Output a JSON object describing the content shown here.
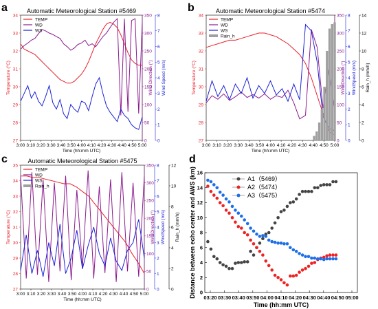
{
  "colors": {
    "temp": "#e8202a",
    "wd": "#8b1a8f",
    "ws": "#1c22d6",
    "rain": "#a0a0a0",
    "a1": "#444444",
    "a2": "#ee2222",
    "a3": "#1d6fe8"
  },
  "chart_data": [
    {
      "panel": "a",
      "type": "line",
      "title": "Automatic Meteorological Station #5469",
      "xlabel": "Time (hh:mm UTC)",
      "x_ticks": [
        "3:00",
        "3:10",
        "3:20",
        "3:30",
        "3:40",
        "3:50",
        "4:00",
        "4:10",
        "4:20",
        "4:30",
        "4:40",
        "4:50",
        "5:00"
      ],
      "left_axis": {
        "label": "Temperature (°C)",
        "ticks": [
          27,
          28,
          29,
          30,
          31,
          32,
          33,
          34
        ],
        "ylim": [
          27,
          34
        ]
      },
      "right_axes": [
        {
          "label": "Wind Direction (°)",
          "ticks": [
            0,
            50,
            100,
            150,
            200,
            250,
            300,
            350
          ],
          "ylim": [
            0,
            350
          ]
        },
        {
          "label": "Wind Speed (m/s)",
          "ticks": [
            0,
            1,
            2,
            3,
            4,
            5,
            6,
            7,
            8
          ],
          "ylim": [
            0,
            8
          ]
        }
      ],
      "legend": [
        "TEMP",
        "WD",
        "WS"
      ],
      "series": [
        {
          "name": "TEMP",
          "axis": "left",
          "values": [
            32.4,
            32.1,
            32.0,
            31.9,
            31.8,
            31.6,
            31.4,
            31.2,
            31.0,
            30.8,
            30.6,
            30.4,
            30.3,
            30.2,
            30.2,
            30.3,
            30.5,
            30.7,
            31.0,
            31.4,
            31.9,
            32.4,
            32.8,
            33.2,
            33.5,
            33.6,
            33.5,
            33.3,
            32.9,
            32.4,
            31.9,
            31.5,
            31.3,
            31.2,
            31.2
          ]
        },
        {
          "name": "WD",
          "axis": "right1",
          "values": [
            255,
            265,
            272,
            280,
            285,
            298,
            310,
            306,
            300,
            296,
            290,
            285,
            270,
            262,
            252,
            258,
            268,
            272,
            280,
            265,
            270,
            262,
            276,
            290,
            300,
            315,
            330,
            340,
            70,
            340,
            80,
            335,
            340,
            75,
            330
          ]
        },
        {
          "name": "WS",
          "axis": "right2",
          "values": [
            2.5,
            3.0,
            3.5,
            2.7,
            3.1,
            2.5,
            2.2,
            2.8,
            3.5,
            2.4,
            2.0,
            2.6,
            1.7,
            1.4,
            2.3,
            2.0,
            1.8,
            2.5,
            2.4,
            1.9,
            2.8,
            3.6,
            4.0,
            3.0,
            2.2,
            1.8,
            1.5,
            1.2,
            2.0,
            1.6,
            1.4,
            1.0,
            0.8,
            0.7,
            1.5
          ]
        }
      ]
    },
    {
      "panel": "b",
      "type": "line",
      "title": "Automatic Meteorological Station #5474",
      "xlabel": "Time (hh:mm UTC)",
      "x_ticks": [
        "3:00",
        "3:10",
        "3:20",
        "3:30",
        "3:40",
        "3:50",
        "4:00",
        "4:10",
        "4:20",
        "4:30",
        "4:40",
        "4:50",
        "5:00"
      ],
      "left_axis": {
        "label": "Temperature (°C)",
        "ticks": [
          27,
          28,
          29,
          30,
          31,
          32,
          33,
          34
        ],
        "ylim": [
          27,
          34
        ]
      },
      "right_axes": [
        {
          "label": "WindDirection (°)",
          "ticks": [
            0,
            50,
            100,
            150,
            200,
            250,
            300,
            350
          ],
          "ylim": [
            0,
            350
          ]
        },
        {
          "label": "WindSpeed (m/s)",
          "ticks": [
            0,
            1,
            2,
            3,
            4,
            5,
            6,
            7,
            8
          ],
          "ylim": [
            0,
            8
          ]
        },
        {
          "label": "Rain_h (mm/h)",
          "ticks": [
            0,
            2,
            4,
            6,
            8,
            10,
            12,
            14
          ],
          "ylim": [
            0,
            14
          ]
        }
      ],
      "legend": [
        "TEMP",
        "WD",
        "WS",
        "Rain_h"
      ],
      "series": [
        {
          "name": "TEMP",
          "axis": "left",
          "values": [
            32.2,
            32.3,
            32.4,
            32.5,
            32.6,
            32.6,
            32.7,
            32.8,
            32.9,
            33.0,
            33.0,
            32.9,
            32.8,
            32.6,
            32.4,
            32.1,
            31.8,
            31.3,
            30.5,
            29.5,
            28.5,
            27.5,
            27.3
          ]
        },
        {
          "name": "WD",
          "axis": "right1",
          "values": [
            105,
            125,
            115,
            130,
            112,
            122,
            135,
            120,
            128,
            118,
            130,
            115,
            125,
            120,
            140,
            105,
            60,
            70,
            310,
            260,
            90,
            200,
            80
          ]
        },
        {
          "name": "WS",
          "axis": "right2",
          "values": [
            2.5,
            3.8,
            2.8,
            3.5,
            2.6,
            3.6,
            3.0,
            4.0,
            2.7,
            3.5,
            3.0,
            3.8,
            2.9,
            3.3,
            2.5,
            3.6,
            2.6,
            7.4,
            7.0,
            5.0,
            1.5,
            0.8,
            0.6
          ]
        },
        {
          "name": "Rain_h",
          "axis": "right3",
          "type": "bar",
          "x": [
            0.84,
            0.86,
            0.88,
            0.9,
            0.92,
            0.94,
            0.96,
            0.98,
            1.0
          ],
          "values": [
            0.5,
            1.0,
            2.0,
            3.5,
            6,
            10,
            12.5,
            13.0,
            13.2
          ]
        }
      ]
    },
    {
      "panel": "c",
      "type": "line",
      "title": "Automatic Meteorological Station #5475",
      "xlabel": "Time (hh:mm UTC)",
      "x_ticks": [
        "3:00",
        "3:10",
        "3:20",
        "3:30",
        "3:40",
        "3:50",
        "4:00",
        "4:10",
        "4:20",
        "4:30",
        "4:40",
        "4:50",
        "5:00"
      ],
      "left_axis": {
        "label": "Temperature (°C)",
        "ticks": [
          27,
          28,
          29,
          30,
          31,
          32,
          33,
          34,
          35
        ],
        "ylim": [
          27,
          35
        ]
      },
      "right_axes": [
        {
          "label": "WindDirection (°)",
          "ticks": [
            0,
            50,
            100,
            150,
            200,
            250,
            300,
            350
          ],
          "ylim": [
            0,
            350
          ]
        },
        {
          "label": "WindSpeed (m/s)",
          "ticks": [
            0,
            1,
            2,
            3,
            4,
            5,
            6,
            7,
            8
          ],
          "ylim": [
            0,
            8
          ]
        },
        {
          "label": "Rain_h (mm/h)",
          "ticks": [
            0,
            2,
            4,
            6,
            8,
            10,
            12
          ],
          "ylim": [
            0,
            12
          ]
        }
      ],
      "legend": [
        "TEMP",
        "WD",
        "WS",
        "Rain_h"
      ],
      "series": [
        {
          "name": "TEMP",
          "axis": "left",
          "values": [
            34.3,
            34.3,
            34.2,
            34.2,
            34.1,
            34.0,
            33.9,
            33.8,
            33.8,
            33.6,
            33.3,
            33.0,
            32.5,
            32.0,
            31.5,
            31.0,
            30.5,
            30.0,
            29.3,
            28.7,
            28.0
          ]
        },
        {
          "name": "WD",
          "axis": "right1",
          "values": [
            320,
            30,
            330,
            40,
            310,
            20,
            300,
            50,
            320,
            25,
            280,
            60,
            335,
            30,
            290,
            45,
            310,
            20,
            330,
            50,
            300,
            35,
            320
          ]
        },
        {
          "name": "WS",
          "axis": "right2",
          "values": [
            1.2,
            3.5,
            1.0,
            2.5,
            0.8,
            3.0,
            1.5,
            4.2,
            1.0,
            2.0,
            3.8,
            1.3,
            2.8,
            4.0,
            2.3,
            1.5,
            3.3,
            1.8,
            1.2,
            2.5,
            3.0,
            4.5,
            2.0
          ]
        }
      ]
    },
    {
      "panel": "d",
      "type": "scatter",
      "xlabel": "Time (hh:mm UTC)",
      "ylabel": "Distance between echo center and AWS (km)",
      "x_ticks": [
        "03:20",
        "03:30",
        "03:40",
        "03:50",
        "04:00",
        "04:10",
        "04:20",
        "04:30",
        "04:40",
        "04:50",
        "05:00"
      ],
      "xlim": [
        0,
        100
      ],
      "ylim": [
        0,
        16
      ],
      "y_ticks": [
        0,
        2,
        4,
        6,
        8,
        10,
        12,
        14,
        16
      ],
      "legend_position": "top-left",
      "series": [
        {
          "name": "A1（5469）",
          "points": [
            [
              0,
              6.8
            ],
            [
              2,
              5.8
            ],
            [
              4,
              4.8
            ],
            [
              6,
              4.5
            ],
            [
              8,
              4.0
            ],
            [
              10,
              3.7
            ],
            [
              12,
              3.5
            ],
            [
              14,
              3.2
            ],
            [
              16,
              3.2
            ],
            [
              18,
              3.9
            ],
            [
              20,
              4.0
            ],
            [
              22,
              4.0
            ],
            [
              24,
              4.1
            ],
            [
              26,
              4.1
            ],
            [
              28,
              5.5
            ],
            [
              30,
              5.0
            ],
            [
              32,
              6.0
            ],
            [
              34,
              6.6
            ],
            [
              36,
              7.2
            ],
            [
              38,
              7.8
            ],
            [
              40,
              8.0
            ],
            [
              42,
              8.6
            ],
            [
              44,
              9.3
            ],
            [
              46,
              10.0
            ],
            [
              48,
              10.8
            ],
            [
              50,
              11.0
            ],
            [
              52,
              11.5
            ],
            [
              54,
              12.0
            ],
            [
              56,
              12.1
            ],
            [
              58,
              12.5
            ],
            [
              60,
              13.1
            ],
            [
              62,
              13.5
            ],
            [
              64,
              13.5
            ],
            [
              66,
              13.5
            ],
            [
              68,
              13.5
            ],
            [
              70,
              14.0
            ],
            [
              72,
              14.0
            ],
            [
              74,
              14.3
            ],
            [
              76,
              14.4
            ],
            [
              78,
              14.4
            ],
            [
              80,
              14.4
            ],
            [
              82,
              14.8
            ],
            [
              84,
              14.8
            ]
          ]
        },
        {
          "name": "A2（5474）",
          "points": [
            [
              0,
              14.2
            ],
            [
              2,
              13.5
            ],
            [
              4,
              13.0
            ],
            [
              6,
              12.6
            ],
            [
              8,
              12.0
            ],
            [
              10,
              11.6
            ],
            [
              12,
              11.0
            ],
            [
              14,
              10.6
            ],
            [
              16,
              10.0
            ],
            [
              18,
              9.4
            ],
            [
              20,
              8.8
            ],
            [
              22,
              8.6
            ],
            [
              24,
              8.0
            ],
            [
              26,
              7.7
            ],
            [
              28,
              7.0
            ],
            [
              30,
              6.5
            ],
            [
              32,
              6.0
            ],
            [
              34,
              5.5
            ],
            [
              36,
              5.0
            ],
            [
              38,
              4.2
            ],
            [
              40,
              3.6
            ],
            [
              42,
              3.0
            ],
            [
              44,
              2.3
            ],
            [
              46,
              2.0
            ],
            [
              48,
              1.7
            ],
            [
              50,
              1.3
            ],
            [
              52,
              1.0
            ],
            [
              54,
              2.2
            ],
            [
              56,
              2.2
            ],
            [
              58,
              2.3
            ],
            [
              60,
              2.7
            ],
            [
              62,
              3.0
            ],
            [
              64,
              3.2
            ],
            [
              66,
              3.5
            ],
            [
              68,
              3.9
            ],
            [
              70,
              4.0
            ],
            [
              72,
              4.4
            ],
            [
              74,
              4.6
            ],
            [
              76,
              4.7
            ],
            [
              78,
              4.9
            ],
            [
              80,
              5.0
            ],
            [
              82,
              5.0
            ],
            [
              84,
              5.0
            ]
          ]
        },
        {
          "name": "A3（5475）",
          "points": [
            [
              0,
              15.0
            ],
            [
              2,
              14.8
            ],
            [
              4,
              14.4
            ],
            [
              6,
              14.0
            ],
            [
              8,
              13.4
            ],
            [
              10,
              13.0
            ],
            [
              12,
              12.5
            ],
            [
              14,
              12.1
            ],
            [
              16,
              11.5
            ],
            [
              18,
              11.0
            ],
            [
              20,
              10.6
            ],
            [
              22,
              10.2
            ],
            [
              24,
              9.7
            ],
            [
              26,
              9.2
            ],
            [
              28,
              8.6
            ],
            [
              30,
              8.2
            ],
            [
              32,
              7.8
            ],
            [
              34,
              7.5
            ],
            [
              36,
              7.6
            ],
            [
              38,
              7.5
            ],
            [
              40,
              7.0
            ],
            [
              42,
              6.8
            ],
            [
              44,
              6.7
            ],
            [
              46,
              6.6
            ],
            [
              48,
              6.6
            ],
            [
              50,
              6.5
            ],
            [
              52,
              6.5
            ],
            [
              54,
              6.0
            ],
            [
              56,
              5.7
            ],
            [
              58,
              5.5
            ],
            [
              60,
              5.2
            ],
            [
              62,
              5.0
            ],
            [
              64,
              4.8
            ],
            [
              66,
              4.8
            ],
            [
              68,
              4.6
            ],
            [
              70,
              4.6
            ],
            [
              72,
              4.5
            ],
            [
              74,
              4.5
            ],
            [
              76,
              4.4
            ],
            [
              78,
              4.5
            ],
            [
              80,
              4.5
            ],
            [
              82,
              4.5
            ],
            [
              84,
              4.5
            ]
          ]
        }
      ]
    }
  ]
}
